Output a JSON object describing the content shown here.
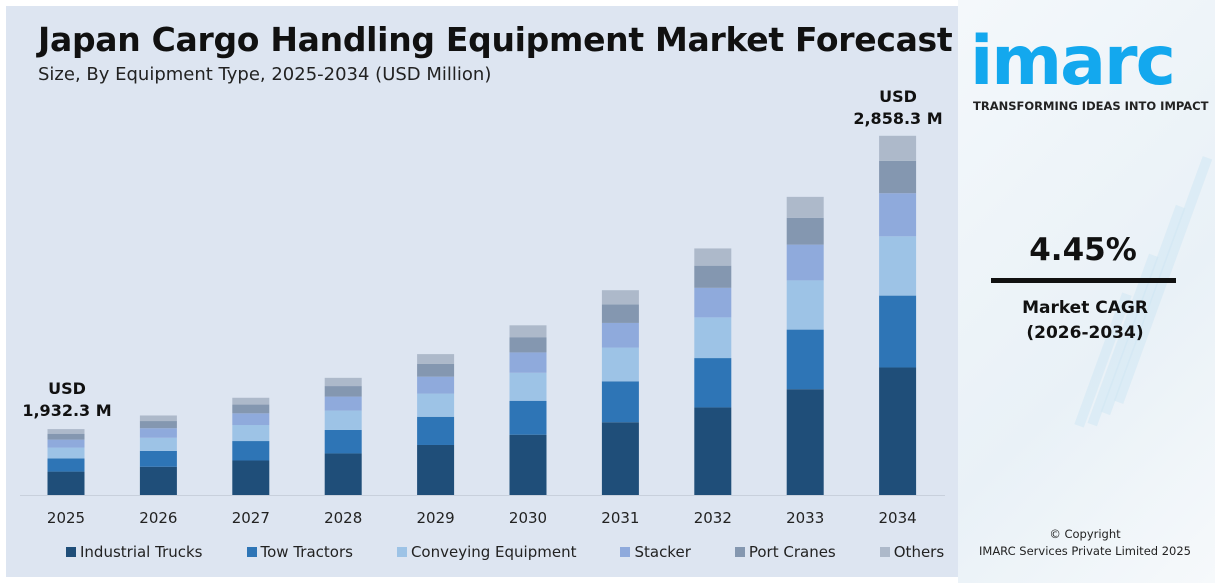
{
  "header": {
    "title": "Japan Cargo Handling Equipment Market Forecast",
    "subtitle": "Size, By Equipment Type, 2025-2034 (USD Million)"
  },
  "annotations": {
    "start_currency": "USD",
    "start_value": "1,932.3 M",
    "end_currency": "USD",
    "end_value": "2,858.3 M"
  },
  "brand": {
    "logo": "imarc",
    "tagline": "TRANSFORMING IDEAS INTO IMPACT",
    "color": "#13a8ee"
  },
  "cagr": {
    "value": "4.45%",
    "label": "Market CAGR",
    "period": "(2026-2034)"
  },
  "copyright": {
    "line1": "© Copyright",
    "line2": "IMARC Services Private Limited 2025"
  },
  "chart_data": {
    "type": "bar",
    "stacked": true,
    "title": "Japan Cargo Handling Equipment Market Forecast",
    "subtitle": "Size, By Equipment Type, 2025-2034 (USD Million)",
    "categories": [
      "2025",
      "2026",
      "2027",
      "2028",
      "2029",
      "2030",
      "2031",
      "2032",
      "2033",
      "2034"
    ],
    "totals": [
      1932.3,
      1976,
      2030,
      2094,
      2169,
      2261,
      2372,
      2504,
      2666,
      2858.3
    ],
    "grid": false,
    "legend": "bottom",
    "y_axis_shown": false,
    "series": [
      {
        "name": "Industrial Trucks",
        "color": "#1f4e79",
        "values": [
          686,
          701,
          721,
          743,
          770,
          803,
          842,
          889,
          946,
          1015
        ]
      },
      {
        "name": "Tow Tractors",
        "color": "#2e75b6",
        "values": [
          386,
          395,
          406,
          419,
          434,
          452,
          474,
          501,
          533,
          572
        ]
      },
      {
        "name": "Conveying Equipment",
        "color": "#9dc3e6",
        "values": [
          319,
          326,
          335,
          346,
          358,
          373,
          391,
          413,
          440,
          472
        ]
      },
      {
        "name": "Stacker",
        "color": "#8faadc",
        "values": [
          232,
          237,
          244,
          251,
          260,
          271,
          285,
          300,
          320,
          343
        ]
      },
      {
        "name": "Port Cranes",
        "color": "#8497b0",
        "values": [
          174,
          178,
          183,
          188,
          195,
          203,
          213,
          225,
          240,
          257
        ]
      },
      {
        "name": "Others",
        "color": "#adb9ca",
        "values": [
          135,
          138,
          142,
          147,
          152,
          158,
          166,
          175,
          187,
          200
        ]
      }
    ]
  }
}
